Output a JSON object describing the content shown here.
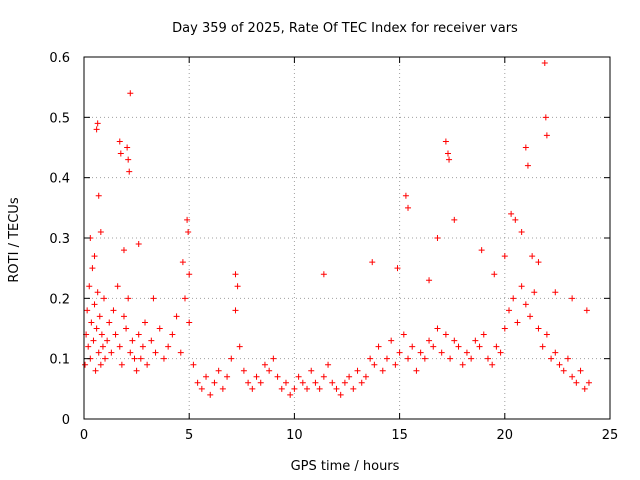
{
  "chart_data": {
    "type": "scatter",
    "title": "Day 359 of 2025, Rate Of TEC Index for receiver vars",
    "xlabel": "GPS time / hours",
    "ylabel": "ROTI / TECUs",
    "xlim": [
      0,
      25
    ],
    "ylim": [
      0,
      0.6
    ],
    "xticks": [
      0,
      5,
      10,
      15,
      20,
      25
    ],
    "yticks": [
      0,
      0.1,
      0.2,
      0.3,
      0.4,
      0.5,
      0.6
    ],
    "xtick_labels": [
      "0",
      "5",
      "10",
      "15",
      "20",
      "25"
    ],
    "ytick_labels": [
      "0",
      "0.1",
      "0.2",
      "0.3",
      "0.4",
      "0.5",
      "0.6"
    ],
    "grid": true,
    "legend": "none",
    "marker": "+",
    "color": "#ff0000",
    "series": [
      {
        "x": [
          0.05,
          0.1,
          0.15,
          0.2,
          0.25,
          0.3,
          0.35,
          0.4,
          0.45,
          0.5,
          0.55,
          0.6,
          0.65,
          0.7,
          0.75,
          0.8,
          0.85,
          0.9,
          0.95,
          1.0,
          1.1,
          1.2,
          1.3,
          1.4,
          1.5,
          1.6,
          1.7,
          1.8,
          1.9,
          2.0,
          2.1,
          2.2,
          2.3,
          2.4,
          2.5,
          2.6,
          2.7,
          2.8,
          2.9,
          3.0,
          3.2,
          3.4,
          3.6,
          3.8,
          4.0,
          4.2,
          4.4,
          4.6,
          4.8,
          5.0,
          5.2,
          5.4,
          5.6,
          5.8,
          6.0,
          6.2,
          6.4,
          6.6,
          6.8,
          7.0,
          7.2,
          7.4,
          7.6,
          7.8,
          8.0,
          8.2,
          8.4,
          8.6,
          8.8,
          9.0,
          9.2,
          9.4,
          9.6,
          9.8,
          10.0,
          10.2,
          10.4,
          10.6,
          10.8,
          11.0,
          11.2,
          11.4,
          11.6,
          11.8,
          12.0,
          12.2,
          12.4,
          12.6,
          12.8,
          13.0,
          13.2,
          13.4,
          13.6,
          13.8,
          14.0,
          14.2,
          14.4,
          14.6,
          14.8,
          15.0,
          15.2,
          15.4,
          15.6,
          15.8,
          16.0,
          16.2,
          16.4,
          16.6,
          16.8,
          17.0,
          17.2,
          17.4,
          17.6,
          17.8,
          18.0,
          18.2,
          18.4,
          18.6,
          18.8,
          19.0,
          19.2,
          19.4,
          19.6,
          19.8,
          20.0,
          20.2,
          20.4,
          20.6,
          20.8,
          21.0,
          21.2,
          21.4,
          21.6,
          21.8,
          22.0,
          22.2,
          22.4,
          22.6,
          22.8,
          23.0,
          23.2,
          23.4,
          23.6,
          23.8,
          24.0,
          0.6,
          0.65,
          0.7,
          1.7,
          1.75,
          2.05,
          2.1,
          2.15,
          2.2,
          4.9,
          4.95,
          5.0,
          17.2,
          17.3,
          17.35,
          21.0,
          21.1,
          21.9,
          21.95,
          22.0,
          15.3,
          15.4,
          20.3,
          20.5,
          13.7,
          0.3,
          0.5,
          0.8,
          1.9,
          2.6,
          3.3,
          4.7,
          7.2,
          7.3,
          11.4,
          14.9,
          16.4,
          16.8,
          17.6,
          18.9,
          19.5,
          20.0,
          20.8,
          21.3,
          21.6,
          22.4,
          23.2,
          23.9
        ],
        "y": [
          0.09,
          0.14,
          0.18,
          0.12,
          0.22,
          0.1,
          0.16,
          0.25,
          0.13,
          0.19,
          0.08,
          0.15,
          0.21,
          0.11,
          0.17,
          0.09,
          0.14,
          0.12,
          0.2,
          0.1,
          0.13,
          0.16,
          0.11,
          0.18,
          0.14,
          0.22,
          0.12,
          0.09,
          0.17,
          0.15,
          0.2,
          0.11,
          0.13,
          0.1,
          0.08,
          0.14,
          0.1,
          0.12,
          0.16,
          0.09,
          0.13,
          0.11,
          0.15,
          0.1,
          0.12,
          0.14,
          0.17,
          0.11,
          0.2,
          0.16,
          0.09,
          0.06,
          0.05,
          0.07,
          0.04,
          0.06,
          0.08,
          0.05,
          0.07,
          0.1,
          0.18,
          0.12,
          0.08,
          0.06,
          0.05,
          0.07,
          0.06,
          0.09,
          0.08,
          0.1,
          0.07,
          0.05,
          0.06,
          0.04,
          0.05,
          0.07,
          0.06,
          0.05,
          0.08,
          0.06,
          0.05,
          0.07,
          0.09,
          0.06,
          0.05,
          0.04,
          0.06,
          0.07,
          0.05,
          0.08,
          0.06,
          0.07,
          0.1,
          0.09,
          0.12,
          0.08,
          0.1,
          0.13,
          0.09,
          0.11,
          0.14,
          0.1,
          0.12,
          0.08,
          0.11,
          0.1,
          0.13,
          0.12,
          0.15,
          0.11,
          0.14,
          0.1,
          0.13,
          0.12,
          0.09,
          0.11,
          0.1,
          0.13,
          0.12,
          0.14,
          0.1,
          0.09,
          0.12,
          0.11,
          0.15,
          0.18,
          0.2,
          0.16,
          0.22,
          0.19,
          0.17,
          0.21,
          0.15,
          0.12,
          0.14,
          0.1,
          0.11,
          0.09,
          0.08,
          0.1,
          0.07,
          0.06,
          0.08,
          0.05,
          0.06,
          0.48,
          0.49,
          0.37,
          0.46,
          0.44,
          0.45,
          0.43,
          0.41,
          0.54,
          0.33,
          0.31,
          0.24,
          0.46,
          0.44,
          0.43,
          0.45,
          0.42,
          0.59,
          0.5,
          0.47,
          0.37,
          0.35,
          0.34,
          0.33,
          0.26,
          0.3,
          0.27,
          0.31,
          0.28,
          0.29,
          0.2,
          0.26,
          0.24,
          0.22,
          0.24,
          0.25,
          0.23,
          0.3,
          0.33,
          0.28,
          0.24,
          0.27,
          0.31,
          0.27,
          0.26,
          0.21,
          0.2,
          0.18
        ]
      }
    ]
  }
}
